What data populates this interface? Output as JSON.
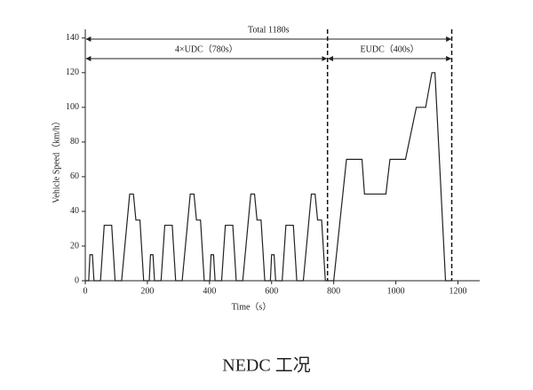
{
  "chart_data": {
    "type": "line",
    "caption": "NEDC 工况",
    "xlabel": "Time（s）",
    "ylabel": "Vehicle Speed（km/h）",
    "x": [
      0,
      11,
      15,
      23,
      28,
      49,
      61,
      85,
      96,
      117,
      143,
      155,
      163,
      176,
      188,
      195,
      206,
      210,
      218,
      223,
      244,
      256,
      280,
      291,
      312,
      338,
      350,
      358,
      371,
      383,
      390,
      401,
      405,
      413,
      418,
      439,
      451,
      475,
      486,
      507,
      533,
      545,
      553,
      566,
      578,
      585,
      596,
      600,
      608,
      613,
      634,
      646,
      670,
      681,
      702,
      728,
      740,
      748,
      761,
      773,
      780,
      800,
      841,
      891,
      899,
      968,
      981,
      1031,
      1066,
      1096,
      1116,
      1126,
      1160,
      1180
    ],
    "values": [
      0,
      0,
      15,
      15,
      0,
      0,
      32,
      32,
      0,
      0,
      50,
      50,
      35,
      35,
      0,
      0,
      0,
      15,
      15,
      0,
      0,
      32,
      32,
      0,
      0,
      50,
      50,
      35,
      35,
      0,
      0,
      0,
      15,
      15,
      0,
      0,
      32,
      32,
      0,
      0,
      50,
      50,
      35,
      35,
      0,
      0,
      0,
      15,
      15,
      0,
      0,
      32,
      32,
      0,
      0,
      50,
      50,
      35,
      35,
      0,
      0,
      0,
      70,
      70,
      50,
      50,
      70,
      70,
      100,
      100,
      120,
      120,
      0,
      0
    ],
    "color": "#222222",
    "xlim": [
      0,
      1270
    ],
    "ylim": [
      0,
      145
    ],
    "xticks": [
      0,
      200,
      400,
      600,
      800,
      1000,
      1200
    ],
    "yticks": [
      0,
      20,
      40,
      60,
      80,
      100,
      120,
      140
    ],
    "vlines": [
      780,
      1180
    ],
    "annotations": [
      {
        "text": "Total 1180s",
        "start": 0,
        "end": 1180
      },
      {
        "text": "4×UDC（780s）",
        "start": 0,
        "end": 780
      },
      {
        "text": "EUDC（400s）",
        "start": 780,
        "end": 1180
      }
    ]
  }
}
